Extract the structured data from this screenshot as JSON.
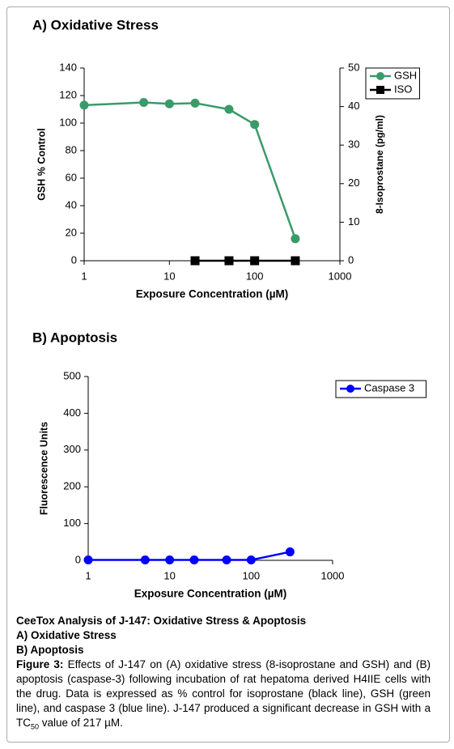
{
  "chart_data": [
    {
      "type": "line",
      "title": "A) Oxidative Stress",
      "x_label": "Exposure Concentration (µM)",
      "y_label": "GSH % Control",
      "y2_label": "8-Isoprostane (pg/ml)",
      "x_scale": "log",
      "xlim": [
        1,
        1000
      ],
      "xticks": [
        1,
        10,
        100,
        1000
      ],
      "ylim": [
        0,
        140
      ],
      "yticks": [
        0,
        20,
        40,
        60,
        80,
        100,
        120,
        140
      ],
      "y2lim": [
        0,
        50
      ],
      "y2ticks": [
        0,
        10,
        20,
        30,
        40,
        50
      ],
      "legend": "top-right",
      "series": [
        {
          "name": "GSH",
          "color": "#3a9a6a",
          "marker": "circle",
          "x": [
            1,
            5,
            10,
            20,
            50,
            100,
            300
          ],
          "values": [
            113,
            115,
            114,
            114.5,
            110,
            99,
            16
          ]
        },
        {
          "name": "ISO",
          "color": "#000000",
          "marker": "square",
          "axis": "y2",
          "x": [
            20,
            50,
            100,
            300
          ],
          "values": [
            0,
            0,
            0,
            0
          ]
        }
      ]
    },
    {
      "type": "line",
      "title": "B) Apoptosis",
      "x_label": "Exposure Concentration (µM)",
      "y_label": "Fluorescence Units",
      "x_scale": "log",
      "xlim": [
        1,
        1000
      ],
      "xticks": [
        1,
        10,
        100,
        1000
      ],
      "ylim": [
        0,
        500
      ],
      "yticks": [
        0,
        100,
        200,
        300,
        400,
        500
      ],
      "legend": "top-right",
      "series": [
        {
          "name": "Caspase 3",
          "color": "#0000ff",
          "marker": "circle",
          "x": [
            1,
            5,
            10,
            20,
            50,
            100,
            300
          ],
          "values": [
            1,
            1,
            1,
            1,
            1,
            1,
            23
          ]
        }
      ]
    }
  ],
  "caption": {
    "heading": "CeeTox Analysis of J-147: Oxidative Stress & Apoptosis",
    "line_a": "A) Oxidative Stress",
    "line_b": "B) Apoptosis",
    "figure_label": "Figure 3:",
    "text": " Effects of J-147 on (A) oxidative stress (8-isoprostane and GSH) and (B) apoptosis (caspase-3) following incubation of rat hepatoma derived H4IIE cells with the drug.  Data is expressed as % control for isoprostane (black line), GSH (green line), and caspase 3 (blue line). J-147 produced a significant decrease in GSH with a TC",
    "subscript": "50",
    "text_end": " value of 217 µM."
  }
}
